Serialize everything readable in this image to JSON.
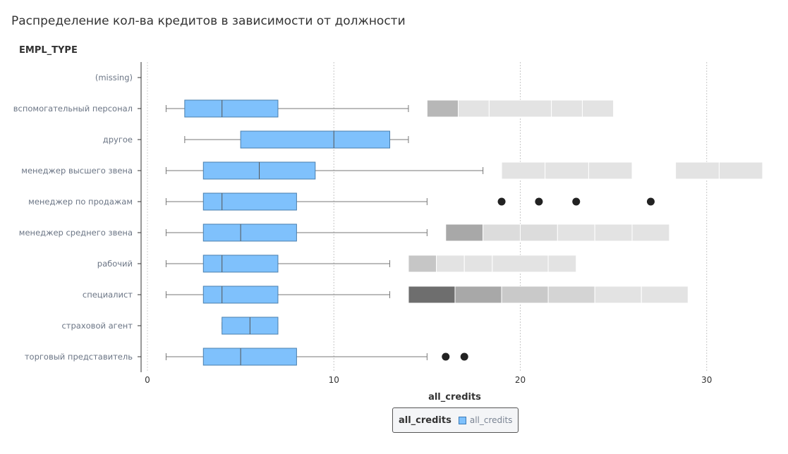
{
  "chart_data": {
    "type": "boxplot",
    "title": "Распределение кол-ва кредитов в зависимости от должности",
    "ylabel": "EMPL_TYPE",
    "xlabel": "all_credits",
    "xlim": [
      0,
      33
    ],
    "xticks": [
      0,
      10,
      20,
      30
    ],
    "grid": true,
    "legend": {
      "title": "all_credits",
      "items": [
        "all_credits"
      ],
      "position": "bottom-center"
    },
    "colors": {
      "box": "#7fc1fc",
      "box_stroke": "#4a7fae",
      "outlier": "#222222",
      "whisker": "#777777"
    },
    "categories": [
      {
        "label": "(missing)",
        "box": null,
        "outlier_points": [],
        "outlier_bins": []
      },
      {
        "label": "вспомогательный персонал",
        "box": {
          "min": 1,
          "q1": 2,
          "median": 4,
          "q3": 7,
          "max": 14
        },
        "outlier_points": [],
        "outlier_bins": [
          {
            "from": 15,
            "to": 16.67,
            "shade": "#b7b7b7"
          },
          {
            "from": 16.67,
            "to": 18.33,
            "shade": "#e3e3e3"
          },
          {
            "from": 18.33,
            "to": 21.67,
            "shade": "#e3e3e3"
          },
          {
            "from": 21.67,
            "to": 23.33,
            "shade": "#e3e3e3"
          },
          {
            "from": 23.33,
            "to": 25,
            "shade": "#e3e3e3"
          }
        ]
      },
      {
        "label": "другое",
        "box": {
          "min": 2,
          "q1": 5,
          "median": 10,
          "q3": 13,
          "max": 14
        },
        "outlier_points": [],
        "outlier_bins": []
      },
      {
        "label": "менеджер высшего звена",
        "box": {
          "min": 1,
          "q1": 3,
          "median": 6,
          "q3": 9,
          "max": 18
        },
        "outlier_points": [],
        "outlier_bins": [
          {
            "from": 19,
            "to": 21.33,
            "shade": "#e3e3e3"
          },
          {
            "from": 21.33,
            "to": 23.67,
            "shade": "#e3e3e3"
          },
          {
            "from": 23.67,
            "to": 26,
            "shade": "#e3e3e3"
          },
          {
            "from": 28.33,
            "to": 30.67,
            "shade": "#e3e3e3"
          },
          {
            "from": 30.67,
            "to": 33,
            "shade": "#e3e3e3"
          }
        ]
      },
      {
        "label": "менеджер по продажам",
        "box": {
          "min": 1,
          "q1": 3,
          "median": 4,
          "q3": 8,
          "max": 15
        },
        "outlier_points": [
          19,
          21,
          23,
          27
        ],
        "outlier_bins": []
      },
      {
        "label": "менеджер среднего звена",
        "box": {
          "min": 1,
          "q1": 3,
          "median": 5,
          "q3": 8,
          "max": 15
        },
        "outlier_points": [],
        "outlier_bins": [
          {
            "from": 16,
            "to": 18,
            "shade": "#a8a8a8"
          },
          {
            "from": 18,
            "to": 20,
            "shade": "#dcdcdc"
          },
          {
            "from": 20,
            "to": 22,
            "shade": "#dcdcdc"
          },
          {
            "from": 22,
            "to": 24,
            "shade": "#e3e3e3"
          },
          {
            "from": 24,
            "to": 26,
            "shade": "#e3e3e3"
          },
          {
            "from": 26,
            "to": 28,
            "shade": "#e3e3e3"
          }
        ]
      },
      {
        "label": "рабочий",
        "box": {
          "min": 1,
          "q1": 3,
          "median": 4,
          "q3": 7,
          "max": 13
        },
        "outlier_points": [],
        "outlier_bins": [
          {
            "from": 14,
            "to": 15.5,
            "shade": "#c6c6c6"
          },
          {
            "from": 15.5,
            "to": 17,
            "shade": "#e3e3e3"
          },
          {
            "from": 17,
            "to": 18.5,
            "shade": "#e3e3e3"
          },
          {
            "from": 18.5,
            "to": 21.5,
            "shade": "#e3e3e3"
          },
          {
            "from": 21.5,
            "to": 23,
            "shade": "#e3e3e3"
          }
        ]
      },
      {
        "label": "специалист",
        "box": {
          "min": 1,
          "q1": 3,
          "median": 4,
          "q3": 7,
          "max": 13
        },
        "outlier_points": [],
        "outlier_bins": [
          {
            "from": 14,
            "to": 16.5,
            "shade": "#6e6e6e"
          },
          {
            "from": 16.5,
            "to": 19,
            "shade": "#a8a8a8"
          },
          {
            "from": 19,
            "to": 21.5,
            "shade": "#c9c9c9"
          },
          {
            "from": 21.5,
            "to": 24,
            "shade": "#d4d4d4"
          },
          {
            "from": 24,
            "to": 26.5,
            "shade": "#e3e3e3"
          },
          {
            "from": 26.5,
            "to": 29,
            "shade": "#e3e3e3"
          }
        ]
      },
      {
        "label": "страховой агент",
        "box": {
          "min": 4,
          "q1": 4,
          "median": 5.5,
          "q3": 7,
          "max": 7
        },
        "outlier_points": [],
        "outlier_bins": []
      },
      {
        "label": "торговый представитель",
        "box": {
          "min": 1,
          "q1": 3,
          "median": 5,
          "q3": 8,
          "max": 15
        },
        "outlier_points": [
          16,
          17
        ],
        "outlier_bins": []
      }
    ]
  }
}
